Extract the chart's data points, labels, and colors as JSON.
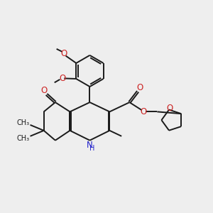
{
  "bg_color": "#eeeeee",
  "bond_color": "#1a1a1a",
  "n_color": "#2222cc",
  "o_color": "#cc2222",
  "fs": 8.5,
  "fs_s": 7.0,
  "lw": 1.4,
  "xlim": [
    0,
    10
  ],
  "ylim": [
    1.5,
    9.5
  ]
}
